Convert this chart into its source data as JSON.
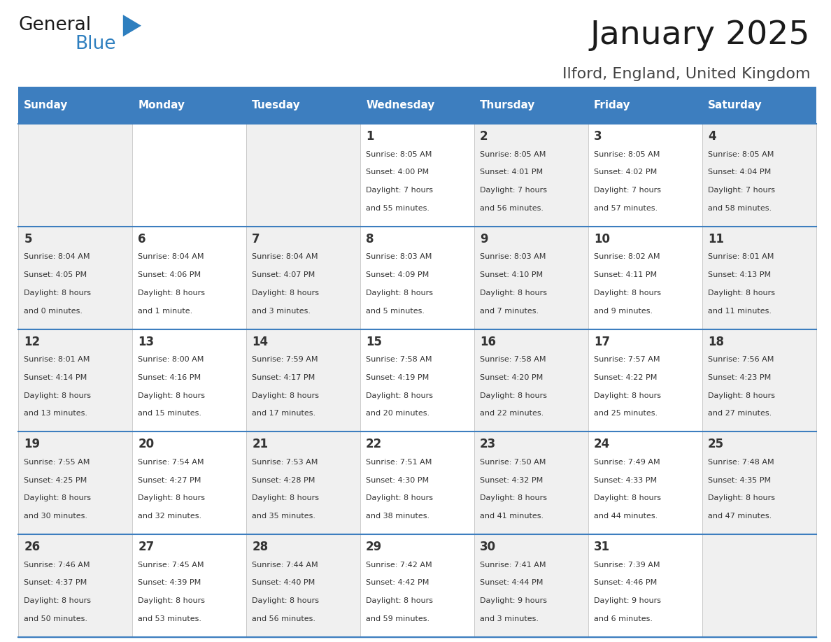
{
  "title": "January 2025",
  "subtitle": "Ilford, England, United Kingdom",
  "header_bg": "#3d7ebf",
  "header_text_color": "#ffffff",
  "row_bg_odd": "#f0f0f0",
  "row_bg_even": "#ffffff",
  "cell_border_color": "#3d7ebf",
  "day_number_color": "#333333",
  "text_color": "#333333",
  "days_of_week": [
    "Sunday",
    "Monday",
    "Tuesday",
    "Wednesday",
    "Thursday",
    "Friday",
    "Saturday"
  ],
  "calendar": [
    [
      {
        "day": "",
        "sunrise": "",
        "sunset": "",
        "daylight": ""
      },
      {
        "day": "",
        "sunrise": "",
        "sunset": "",
        "daylight": ""
      },
      {
        "day": "",
        "sunrise": "",
        "sunset": "",
        "daylight": ""
      },
      {
        "day": "1",
        "sunrise": "8:05 AM",
        "sunset": "4:00 PM",
        "daylight_h": "7 hours",
        "daylight_m": "and 55 minutes."
      },
      {
        "day": "2",
        "sunrise": "8:05 AM",
        "sunset": "4:01 PM",
        "daylight_h": "7 hours",
        "daylight_m": "and 56 minutes."
      },
      {
        "day": "3",
        "sunrise": "8:05 AM",
        "sunset": "4:02 PM",
        "daylight_h": "7 hours",
        "daylight_m": "and 57 minutes."
      },
      {
        "day": "4",
        "sunrise": "8:05 AM",
        "sunset": "4:04 PM",
        "daylight_h": "7 hours",
        "daylight_m": "and 58 minutes."
      }
    ],
    [
      {
        "day": "5",
        "sunrise": "8:04 AM",
        "sunset": "4:05 PM",
        "daylight_h": "8 hours",
        "daylight_m": "and 0 minutes."
      },
      {
        "day": "6",
        "sunrise": "8:04 AM",
        "sunset": "4:06 PM",
        "daylight_h": "8 hours",
        "daylight_m": "and 1 minute."
      },
      {
        "day": "7",
        "sunrise": "8:04 AM",
        "sunset": "4:07 PM",
        "daylight_h": "8 hours",
        "daylight_m": "and 3 minutes."
      },
      {
        "day": "8",
        "sunrise": "8:03 AM",
        "sunset": "4:09 PM",
        "daylight_h": "8 hours",
        "daylight_m": "and 5 minutes."
      },
      {
        "day": "9",
        "sunrise": "8:03 AM",
        "sunset": "4:10 PM",
        "daylight_h": "8 hours",
        "daylight_m": "and 7 minutes."
      },
      {
        "day": "10",
        "sunrise": "8:02 AM",
        "sunset": "4:11 PM",
        "daylight_h": "8 hours",
        "daylight_m": "and 9 minutes."
      },
      {
        "day": "11",
        "sunrise": "8:01 AM",
        "sunset": "4:13 PM",
        "daylight_h": "8 hours",
        "daylight_m": "and 11 minutes."
      }
    ],
    [
      {
        "day": "12",
        "sunrise": "8:01 AM",
        "sunset": "4:14 PM",
        "daylight_h": "8 hours",
        "daylight_m": "and 13 minutes."
      },
      {
        "day": "13",
        "sunrise": "8:00 AM",
        "sunset": "4:16 PM",
        "daylight_h": "8 hours",
        "daylight_m": "and 15 minutes."
      },
      {
        "day": "14",
        "sunrise": "7:59 AM",
        "sunset": "4:17 PM",
        "daylight_h": "8 hours",
        "daylight_m": "and 17 minutes."
      },
      {
        "day": "15",
        "sunrise": "7:58 AM",
        "sunset": "4:19 PM",
        "daylight_h": "8 hours",
        "daylight_m": "and 20 minutes."
      },
      {
        "day": "16",
        "sunrise": "7:58 AM",
        "sunset": "4:20 PM",
        "daylight_h": "8 hours",
        "daylight_m": "and 22 minutes."
      },
      {
        "day": "17",
        "sunrise": "7:57 AM",
        "sunset": "4:22 PM",
        "daylight_h": "8 hours",
        "daylight_m": "and 25 minutes."
      },
      {
        "day": "18",
        "sunrise": "7:56 AM",
        "sunset": "4:23 PM",
        "daylight_h": "8 hours",
        "daylight_m": "and 27 minutes."
      }
    ],
    [
      {
        "day": "19",
        "sunrise": "7:55 AM",
        "sunset": "4:25 PM",
        "daylight_h": "8 hours",
        "daylight_m": "and 30 minutes."
      },
      {
        "day": "20",
        "sunrise": "7:54 AM",
        "sunset": "4:27 PM",
        "daylight_h": "8 hours",
        "daylight_m": "and 32 minutes."
      },
      {
        "day": "21",
        "sunrise": "7:53 AM",
        "sunset": "4:28 PM",
        "daylight_h": "8 hours",
        "daylight_m": "and 35 minutes."
      },
      {
        "day": "22",
        "sunrise": "7:51 AM",
        "sunset": "4:30 PM",
        "daylight_h": "8 hours",
        "daylight_m": "and 38 minutes."
      },
      {
        "day": "23",
        "sunrise": "7:50 AM",
        "sunset": "4:32 PM",
        "daylight_h": "8 hours",
        "daylight_m": "and 41 minutes."
      },
      {
        "day": "24",
        "sunrise": "7:49 AM",
        "sunset": "4:33 PM",
        "daylight_h": "8 hours",
        "daylight_m": "and 44 minutes."
      },
      {
        "day": "25",
        "sunrise": "7:48 AM",
        "sunset": "4:35 PM",
        "daylight_h": "8 hours",
        "daylight_m": "and 47 minutes."
      }
    ],
    [
      {
        "day": "26",
        "sunrise": "7:46 AM",
        "sunset": "4:37 PM",
        "daylight_h": "8 hours",
        "daylight_m": "and 50 minutes."
      },
      {
        "day": "27",
        "sunrise": "7:45 AM",
        "sunset": "4:39 PM",
        "daylight_h": "8 hours",
        "daylight_m": "and 53 minutes."
      },
      {
        "day": "28",
        "sunrise": "7:44 AM",
        "sunset": "4:40 PM",
        "daylight_h": "8 hours",
        "daylight_m": "and 56 minutes."
      },
      {
        "day": "29",
        "sunrise": "7:42 AM",
        "sunset": "4:42 PM",
        "daylight_h": "8 hours",
        "daylight_m": "and 59 minutes."
      },
      {
        "day": "30",
        "sunrise": "7:41 AM",
        "sunset": "4:44 PM",
        "daylight_h": "9 hours",
        "daylight_m": "and 3 minutes."
      },
      {
        "day": "31",
        "sunrise": "7:39 AM",
        "sunset": "4:46 PM",
        "daylight_h": "9 hours",
        "daylight_m": "and 6 minutes."
      },
      {
        "day": "",
        "sunrise": "",
        "sunset": "",
        "daylight_h": "",
        "daylight_m": ""
      }
    ]
  ]
}
